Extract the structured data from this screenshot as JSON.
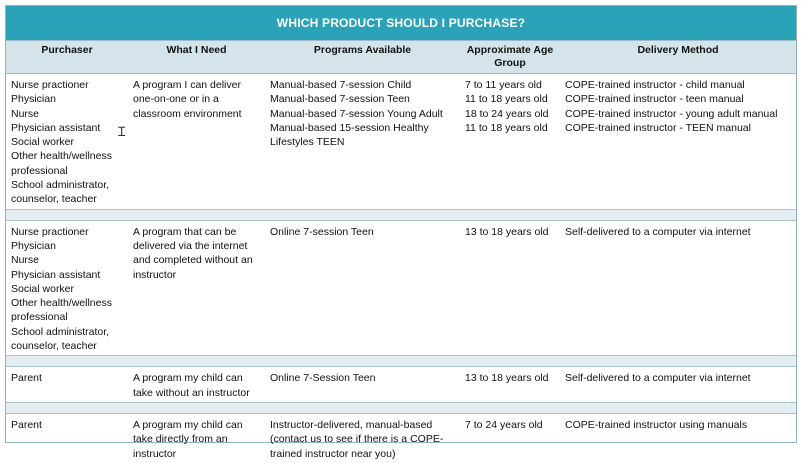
{
  "title": "WHICH PRODUCT SHOULD I PURCHASE?",
  "headers": {
    "purchaser": "Purchaser",
    "need": "What I Need",
    "programs": "Programs Available",
    "age": "Approximate Age Group",
    "delivery": "Delivery Method"
  },
  "rows": [
    {
      "purchaser": [
        "Nurse practioner",
        "Physician",
        "Nurse",
        "Physician assistant",
        "Social worker",
        "Other health/wellness professional",
        "School administrator, counselor, teacher"
      ],
      "need": "A program I can deliver one-on-one or in a classroom environment",
      "programs": [
        "Manual-based 7-session Child",
        "Manual-based 7-session Teen",
        "Manual-based 7-session Young Adult",
        "Manual-based 15-session Healthy Lifestyles TEEN"
      ],
      "age": [
        "7 to 11 years old",
        "11 to 18 years old",
        "18 to 24 years old",
        "11 to 18 years old"
      ],
      "delivery": [
        "COPE-trained instructor - child manual",
        "COPE-trained instructor - teen manual",
        "COPE-trained instructor - young adult manual",
        "COPE-trained instructor - TEEN manual"
      ]
    },
    {
      "purchaser": [
        "Nurse practioner",
        "Physician",
        "Nurse",
        "Physician assistant",
        "Social worker",
        "Other health/wellness professional",
        "School administrator, counselor, teacher"
      ],
      "need": "A program that can be delivered via the internet and completed without an instructor",
      "programs": [
        "Online 7-session Teen"
      ],
      "age": [
        "13 to 18 years old"
      ],
      "delivery": [
        "Self-delivered to a computer via internet"
      ]
    },
    {
      "purchaser": [
        "Parent"
      ],
      "need": "A program my child can take without an instructor",
      "programs": [
        "Online 7-Session Teen"
      ],
      "age": [
        "13 to 18 years old"
      ],
      "delivery": [
        "Self-delivered to a computer via internet"
      ]
    },
    {
      "purchaser": [
        "Parent"
      ],
      "need": "A program my child can take directly from an instructor",
      "programs": [
        "Instructor-delivered, manual-based (contact us to see if there is a COPE-trained instructor near you)"
      ],
      "age": [
        "7 to 24 years old"
      ],
      "delivery": [
        "COPE-trained instructor using manuals"
      ]
    }
  ]
}
